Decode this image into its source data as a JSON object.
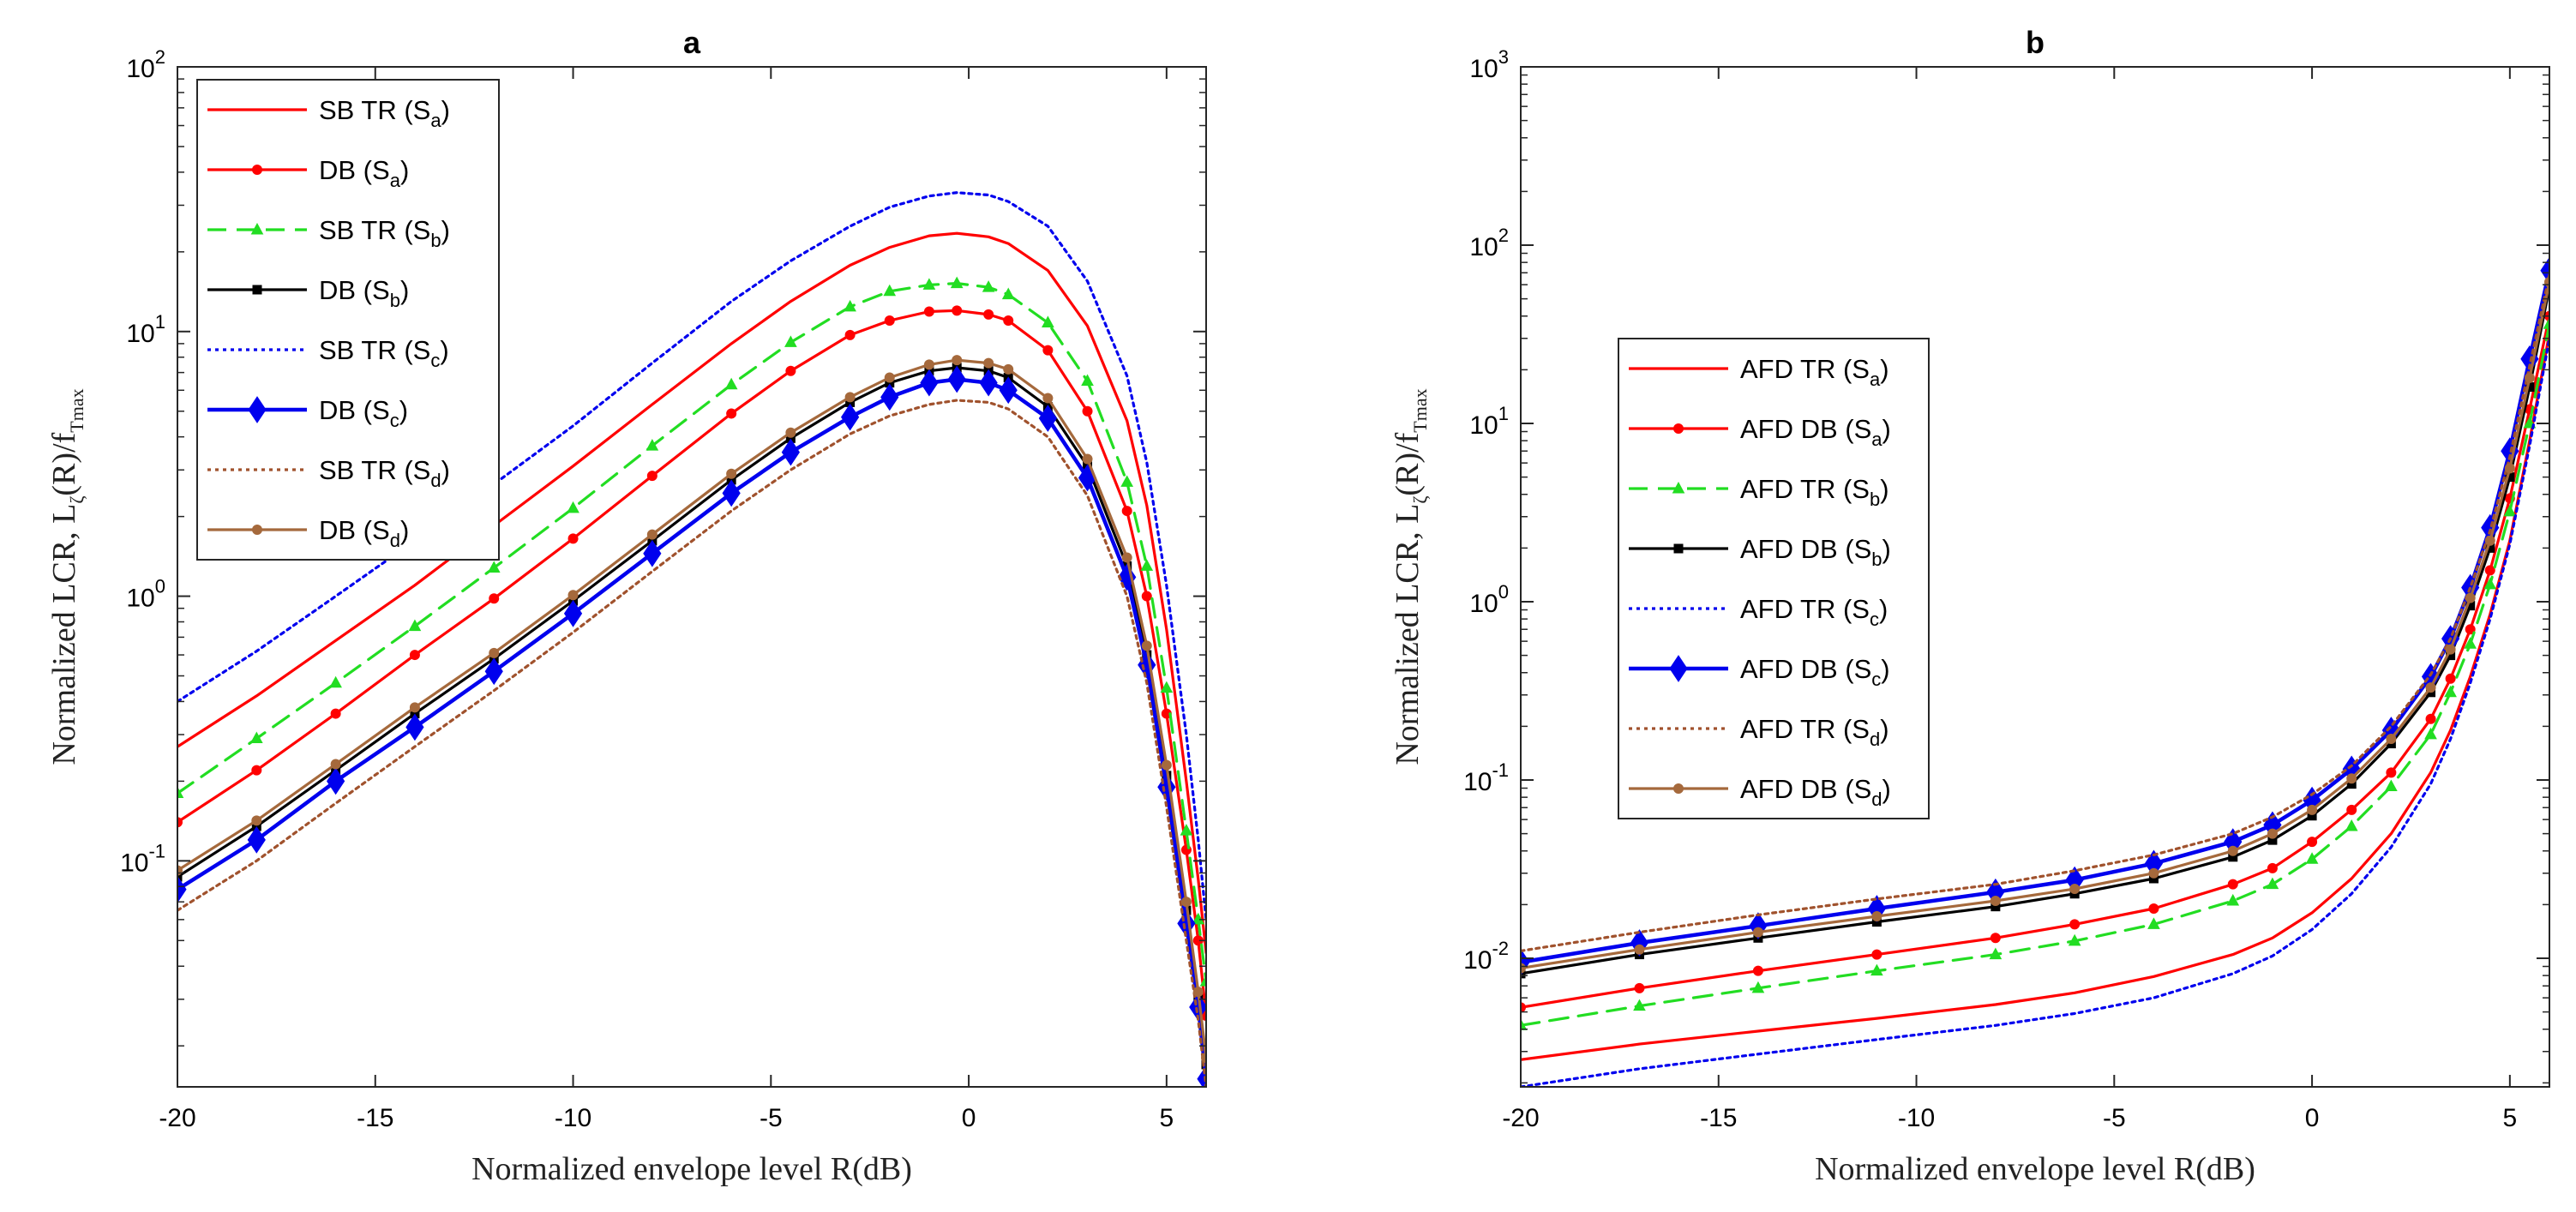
{
  "chart_data": [
    {
      "panel": "a",
      "type": "line",
      "title": "a",
      "xlabel": "Normalized envelope level R(dB)",
      "ylabel": {
        "main": "Normalized LCR, L",
        "sub": "ζ",
        "rest": "(R)/f",
        "sub2": "Tmax"
      },
      "xscale": "linear",
      "yscale": "log",
      "xlim": [
        -20,
        6
      ],
      "ylim": [
        0.014,
        100
      ],
      "xticks": [
        -20,
        -15,
        -10,
        -5,
        0,
        5
      ],
      "xtick_labels": [
        "-20",
        "-15",
        "-10",
        "-5",
        "0",
        "5"
      ],
      "yticks": [
        0.1,
        1,
        10,
        100
      ],
      "ytick_labels": [
        {
          "base": "10",
          "exp": "-1"
        },
        {
          "base": "10",
          "exp": "0"
        },
        {
          "base": "10",
          "exp": "1"
        },
        {
          "base": "10",
          "exp": "2"
        }
      ],
      "legend_position": "top-left",
      "x": [
        -20,
        -18,
        -16,
        -14,
        -12,
        -10,
        -8,
        -6,
        -4.5,
        -3,
        -2,
        -1,
        -0.3,
        0.5,
        1,
        2,
        3,
        4,
        4.5,
        5,
        5.5,
        5.8,
        6
      ],
      "series": [
        {
          "name": "SB TR",
          "sub": "a",
          "color": "#ff0000",
          "style": "solid",
          "marker": "none",
          "values": [
            0.27,
            0.42,
            0.68,
            1.1,
            1.85,
            3.1,
            5.3,
            9.0,
            13.0,
            17.8,
            20.8,
            23.0,
            23.5,
            22.8,
            21.5,
            17.0,
            10.5,
            4.6,
            2.2,
            0.75,
            0.2,
            0.085,
            0.045
          ]
        },
        {
          "name": "DB",
          "sub": "a",
          "color": "#ff0000",
          "style": "solid",
          "marker": "dot",
          "values": [
            0.14,
            0.22,
            0.36,
            0.6,
            0.98,
            1.65,
            2.85,
            4.9,
            7.1,
            9.7,
            11.0,
            11.9,
            12.0,
            11.6,
            11.0,
            8.5,
            5.0,
            2.1,
            1.0,
            0.36,
            0.11,
            0.05,
            0.026
          ]
        },
        {
          "name": "SB TR",
          "sub": "b",
          "color": "#22dd22",
          "style": "dashed",
          "marker": "triangle",
          "values": [
            0.18,
            0.29,
            0.47,
            0.77,
            1.28,
            2.15,
            3.7,
            6.3,
            9.1,
            12.4,
            14.2,
            15.0,
            15.2,
            14.7,
            13.8,
            10.8,
            6.5,
            2.7,
            1.3,
            0.45,
            0.13,
            0.06,
            0.035
          ]
        },
        {
          "name": "DB",
          "sub": "b",
          "color": "#000000",
          "style": "solid",
          "marker": "square",
          "values": [
            0.087,
            0.135,
            0.22,
            0.36,
            0.58,
            0.96,
            1.62,
            2.75,
            3.95,
            5.4,
            6.4,
            7.1,
            7.3,
            7.1,
            6.7,
            5.2,
            3.1,
            1.3,
            0.6,
            0.21,
            0.065,
            0.03,
            0.017
          ]
        },
        {
          "name": "SB TR",
          "sub": "c",
          "color": "#0000ee",
          "style": "dotted",
          "marker": "none",
          "values": [
            0.4,
            0.62,
            1.0,
            1.62,
            2.65,
            4.4,
            7.6,
            13.0,
            18.5,
            25.0,
            29.5,
            32.5,
            33.5,
            32.8,
            31.0,
            25.0,
            15.5,
            6.8,
            3.2,
            1.1,
            0.3,
            0.12,
            0.06
          ]
        },
        {
          "name": "DB",
          "sub": "c",
          "color": "#0000ee",
          "style": "solid",
          "marker": "diamond",
          "values": [
            0.078,
            0.12,
            0.2,
            0.32,
            0.52,
            0.86,
            1.45,
            2.45,
            3.5,
            4.75,
            5.65,
            6.4,
            6.6,
            6.4,
            6.0,
            4.7,
            2.8,
            1.18,
            0.55,
            0.19,
            0.058,
            0.028,
            0.015
          ]
        },
        {
          "name": "SB TR",
          "sub": "d",
          "color": "#a0522d",
          "style": "dotted",
          "marker": "none",
          "values": [
            0.065,
            0.1,
            0.165,
            0.27,
            0.44,
            0.73,
            1.24,
            2.1,
            3.0,
            4.1,
            4.8,
            5.3,
            5.5,
            5.4,
            5.1,
            4.0,
            2.4,
            1.0,
            0.47,
            0.16,
            0.05,
            0.025,
            0.014
          ]
        },
        {
          "name": "DB",
          "sub": "d",
          "color": "#a5693c",
          "style": "solid",
          "marker": "dot",
          "values": [
            0.092,
            0.142,
            0.232,
            0.38,
            0.61,
            1.01,
            1.71,
            2.9,
            4.15,
            5.65,
            6.7,
            7.5,
            7.8,
            7.6,
            7.2,
            5.6,
            3.3,
            1.4,
            0.65,
            0.23,
            0.07,
            0.032,
            0.018
          ]
        }
      ]
    },
    {
      "panel": "b",
      "type": "line",
      "title": "b",
      "xlabel": "Normalized envelope level R(dB)",
      "ylabel": {
        "main": "Normalized LCR, L",
        "sub": "ζ",
        "rest": "(R)/f",
        "sub2": "Tmax"
      },
      "xscale": "linear",
      "yscale": "log",
      "xlim": [
        -20,
        6
      ],
      "ylim": [
        0.0019,
        1000
      ],
      "xticks": [
        -20,
        -15,
        -10,
        -5,
        0,
        5
      ],
      "xtick_labels": [
        "-20",
        "-15",
        "-10",
        "-5",
        "0",
        "5"
      ],
      "yticks": [
        0.01,
        0.1,
        1,
        10,
        100,
        1000
      ],
      "ytick_labels": [
        {
          "base": "10",
          "exp": "-2"
        },
        {
          "base": "10",
          "exp": "-1"
        },
        {
          "base": "10",
          "exp": "0"
        },
        {
          "base": "10",
          "exp": "1"
        },
        {
          "base": "10",
          "exp": "2"
        },
        {
          "base": "10",
          "exp": "3"
        }
      ],
      "legend_position": "middle-left",
      "x": [
        -20,
        -17,
        -14,
        -11,
        -8,
        -6,
        -4,
        -2,
        -1,
        0,
        1,
        2,
        3,
        3.5,
        4,
        4.5,
        5,
        5.5,
        6
      ],
      "series": [
        {
          "name": "AFD TR",
          "sub": "a",
          "color": "#ff0000",
          "style": "solid",
          "marker": "none",
          "values": [
            0.0027,
            0.0033,
            0.0039,
            0.0046,
            0.0055,
            0.0064,
            0.0079,
            0.0105,
            0.013,
            0.018,
            0.028,
            0.05,
            0.11,
            0.19,
            0.38,
            0.85,
            2.2,
            8.0,
            32
          ]
        },
        {
          "name": "AFD DB",
          "sub": "a",
          "color": "#ff0000",
          "style": "solid",
          "marker": "dot",
          "values": [
            0.0053,
            0.0068,
            0.0085,
            0.0105,
            0.013,
            0.0155,
            0.019,
            0.026,
            0.032,
            0.045,
            0.068,
            0.11,
            0.22,
            0.37,
            0.7,
            1.5,
            3.8,
            12.0,
            40
          ]
        },
        {
          "name": "AFD TR",
          "sub": "b",
          "color": "#22dd22",
          "style": "dashed",
          "marker": "triangle",
          "values": [
            0.0042,
            0.0054,
            0.0068,
            0.0085,
            0.0105,
            0.0125,
            0.0155,
            0.021,
            0.026,
            0.036,
            0.055,
            0.092,
            0.18,
            0.31,
            0.58,
            1.25,
            3.2,
            10.0,
            36
          ]
        },
        {
          "name": "AFD DB",
          "sub": "b",
          "color": "#000000",
          "style": "solid",
          "marker": "square",
          "values": [
            0.0082,
            0.0105,
            0.013,
            0.016,
            0.0195,
            0.023,
            0.028,
            0.037,
            0.046,
            0.063,
            0.095,
            0.16,
            0.31,
            0.5,
            0.95,
            2.0,
            5.0,
            16.0,
            58
          ]
        },
        {
          "name": "AFD TR",
          "sub": "c",
          "color": "#0000ee",
          "style": "dotted",
          "marker": "none",
          "values": [
            0.0019,
            0.0024,
            0.0029,
            0.0035,
            0.0042,
            0.0049,
            0.006,
            0.0082,
            0.0103,
            0.0145,
            0.023,
            0.042,
            0.095,
            0.17,
            0.35,
            0.8,
            2.1,
            7.5,
            30
          ]
        },
        {
          "name": "AFD DB",
          "sub": "c",
          "color": "#0000ee",
          "style": "solid",
          "marker": "diamond",
          "values": [
            0.0095,
            0.0122,
            0.0152,
            0.019,
            0.0235,
            0.0275,
            0.034,
            0.045,
            0.056,
            0.077,
            0.115,
            0.19,
            0.38,
            0.62,
            1.2,
            2.6,
            7.0,
            23.0,
            72
          ]
        },
        {
          "name": "AFD TR",
          "sub": "d",
          "color": "#a0522d",
          "style": "dotted",
          "marker": "none",
          "values": [
            0.011,
            0.014,
            0.0175,
            0.0215,
            0.026,
            0.031,
            0.038,
            0.05,
            0.062,
            0.083,
            0.12,
            0.2,
            0.39,
            0.62,
            1.2,
            2.5,
            6.5,
            21.0,
            68
          ]
        },
        {
          "name": "AFD DB",
          "sub": "d",
          "color": "#a5693c",
          "style": "solid",
          "marker": "dot",
          "values": [
            0.0088,
            0.0112,
            0.014,
            0.0172,
            0.021,
            0.0245,
            0.03,
            0.04,
            0.05,
            0.068,
            0.102,
            0.17,
            0.33,
            0.54,
            1.05,
            2.2,
            5.6,
            18.0,
            62
          ]
        }
      ]
    }
  ]
}
